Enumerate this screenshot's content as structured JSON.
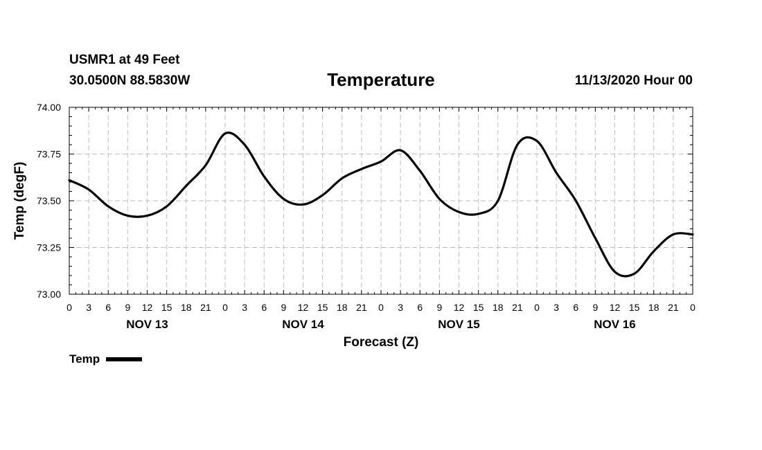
{
  "header": {
    "station": "USMR1 at 49 Feet",
    "coords": "30.0500N 88.5830W",
    "title": "Temperature",
    "datetime": "11/13/2020 Hour 00"
  },
  "legend": {
    "label": "Temp",
    "color": "#000000"
  },
  "chart_data": {
    "type": "line",
    "title": "Temperature",
    "xlabel": "Forecast (Z)",
    "ylabel": "Temp (degF)",
    "ylim": [
      73.0,
      74.0
    ],
    "xlim": [
      0,
      96
    ],
    "grid": true,
    "legend_position": "bottom-left",
    "x_tick_labels": [
      "0",
      "3",
      "6",
      "9",
      "12",
      "15",
      "18",
      "21",
      "0",
      "3",
      "6",
      "9",
      "12",
      "15",
      "18",
      "21",
      "0",
      "3",
      "6",
      "9",
      "12",
      "15",
      "18",
      "21",
      "0",
      "3",
      "6",
      "9",
      "12",
      "15",
      "18",
      "21",
      "0"
    ],
    "y_tick_labels": [
      "73.00",
      "73.25",
      "73.50",
      "73.75",
      "74.00"
    ],
    "day_labels": [
      {
        "label": "NOV 13",
        "hour": 12
      },
      {
        "label": "NOV 14",
        "hour": 36
      },
      {
        "label": "NOV 15",
        "hour": 60
      },
      {
        "label": "NOV 16",
        "hour": 84
      }
    ],
    "series": [
      {
        "name": "Temp",
        "x": [
          0,
          3,
          6,
          9,
          12,
          15,
          18,
          21,
          24,
          27,
          30,
          33,
          36,
          39,
          42,
          45,
          48,
          51,
          54,
          57,
          60,
          63,
          66,
          69,
          72,
          75,
          78,
          81,
          84,
          87,
          90,
          93,
          96
        ],
        "values": [
          73.61,
          73.56,
          73.47,
          73.42,
          73.42,
          73.47,
          73.58,
          73.69,
          73.86,
          73.8,
          73.63,
          73.51,
          73.48,
          73.53,
          73.62,
          73.67,
          73.71,
          73.77,
          73.66,
          73.51,
          73.44,
          73.43,
          73.5,
          73.8,
          73.82,
          73.65,
          73.5,
          73.3,
          73.12,
          73.11,
          73.23,
          73.32,
          73.32
        ]
      }
    ]
  }
}
